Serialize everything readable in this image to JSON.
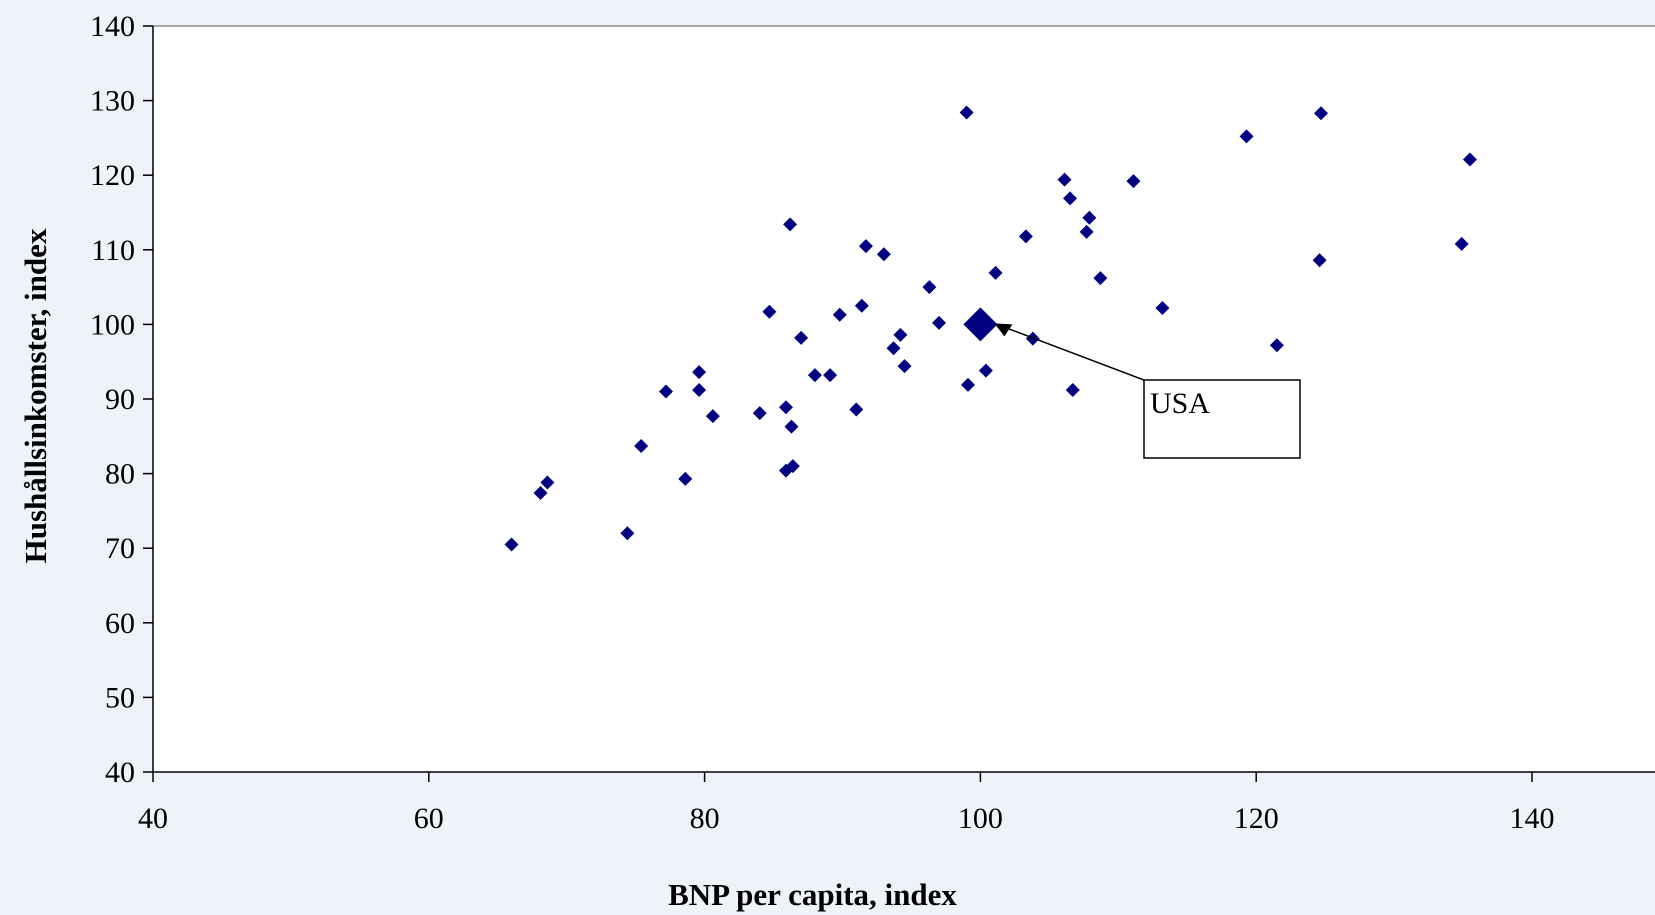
{
  "chart_data": {
    "type": "scatter",
    "xlabel": "BNP per capita, index",
    "ylabel": "Hushållsinkomster, index",
    "xlim": [
      40,
      140
    ],
    "ylim": [
      40,
      140
    ],
    "x_ticks": [
      40,
      60,
      80,
      100,
      120,
      140
    ],
    "y_ticks": [
      40,
      50,
      60,
      70,
      80,
      90,
      100,
      110,
      120,
      130,
      140
    ],
    "grid": false,
    "legend": "none",
    "marker_color": "#000080",
    "background_color": "#eef2f9",
    "plot_area_color": "#ffffff",
    "points": [
      {
        "x": 66.0,
        "y": 70.5
      },
      {
        "x": 68.1,
        "y": 77.4
      },
      {
        "x": 68.6,
        "y": 78.8
      },
      {
        "x": 74.4,
        "y": 72.0
      },
      {
        "x": 75.4,
        "y": 83.7
      },
      {
        "x": 77.2,
        "y": 91.0
      },
      {
        "x": 78.6,
        "y": 79.3
      },
      {
        "x": 79.6,
        "y": 93.6
      },
      {
        "x": 79.6,
        "y": 91.2
      },
      {
        "x": 80.6,
        "y": 87.7
      },
      {
        "x": 84.0,
        "y": 88.1
      },
      {
        "x": 84.7,
        "y": 101.7
      },
      {
        "x": 85.9,
        "y": 88.9
      },
      {
        "x": 85.9,
        "y": 80.4
      },
      {
        "x": 86.4,
        "y": 81.0
      },
      {
        "x": 86.3,
        "y": 86.3
      },
      {
        "x": 86.2,
        "y": 113.4
      },
      {
        "x": 87.0,
        "y": 98.2
      },
      {
        "x": 88.0,
        "y": 93.2
      },
      {
        "x": 89.1,
        "y": 93.2
      },
      {
        "x": 89.8,
        "y": 101.3
      },
      {
        "x": 91.0,
        "y": 88.6
      },
      {
        "x": 91.4,
        "y": 102.5
      },
      {
        "x": 91.7,
        "y": 110.5
      },
      {
        "x": 93.0,
        "y": 109.4
      },
      {
        "x": 93.7,
        "y": 96.8
      },
      {
        "x": 94.2,
        "y": 98.6
      },
      {
        "x": 94.5,
        "y": 94.4
      },
      {
        "x": 96.3,
        "y": 105.0
      },
      {
        "x": 97.0,
        "y": 100.2
      },
      {
        "x": 99.0,
        "y": 128.4
      },
      {
        "x": 99.1,
        "y": 91.9
      },
      {
        "x": 100.4,
        "y": 93.8
      },
      {
        "x": 101.1,
        "y": 106.9
      },
      {
        "x": 103.3,
        "y": 111.8
      },
      {
        "x": 103.8,
        "y": 98.1
      },
      {
        "x": 106.1,
        "y": 119.4
      },
      {
        "x": 106.5,
        "y": 116.9
      },
      {
        "x": 106.7,
        "y": 91.2
      },
      {
        "x": 107.7,
        "y": 112.4
      },
      {
        "x": 107.9,
        "y": 114.3
      },
      {
        "x": 108.7,
        "y": 106.2
      },
      {
        "x": 111.1,
        "y": 119.2
      },
      {
        "x": 113.2,
        "y": 102.2
      },
      {
        "x": 119.3,
        "y": 125.2
      },
      {
        "x": 121.5,
        "y": 97.2
      },
      {
        "x": 124.6,
        "y": 108.6
      },
      {
        "x": 124.7,
        "y": 128.3
      },
      {
        "x": 134.9,
        "y": 110.8
      },
      {
        "x": 135.5,
        "y": 122.1
      }
    ],
    "highlight": {
      "label": "USA",
      "x": 100,
      "y": 100
    }
  }
}
